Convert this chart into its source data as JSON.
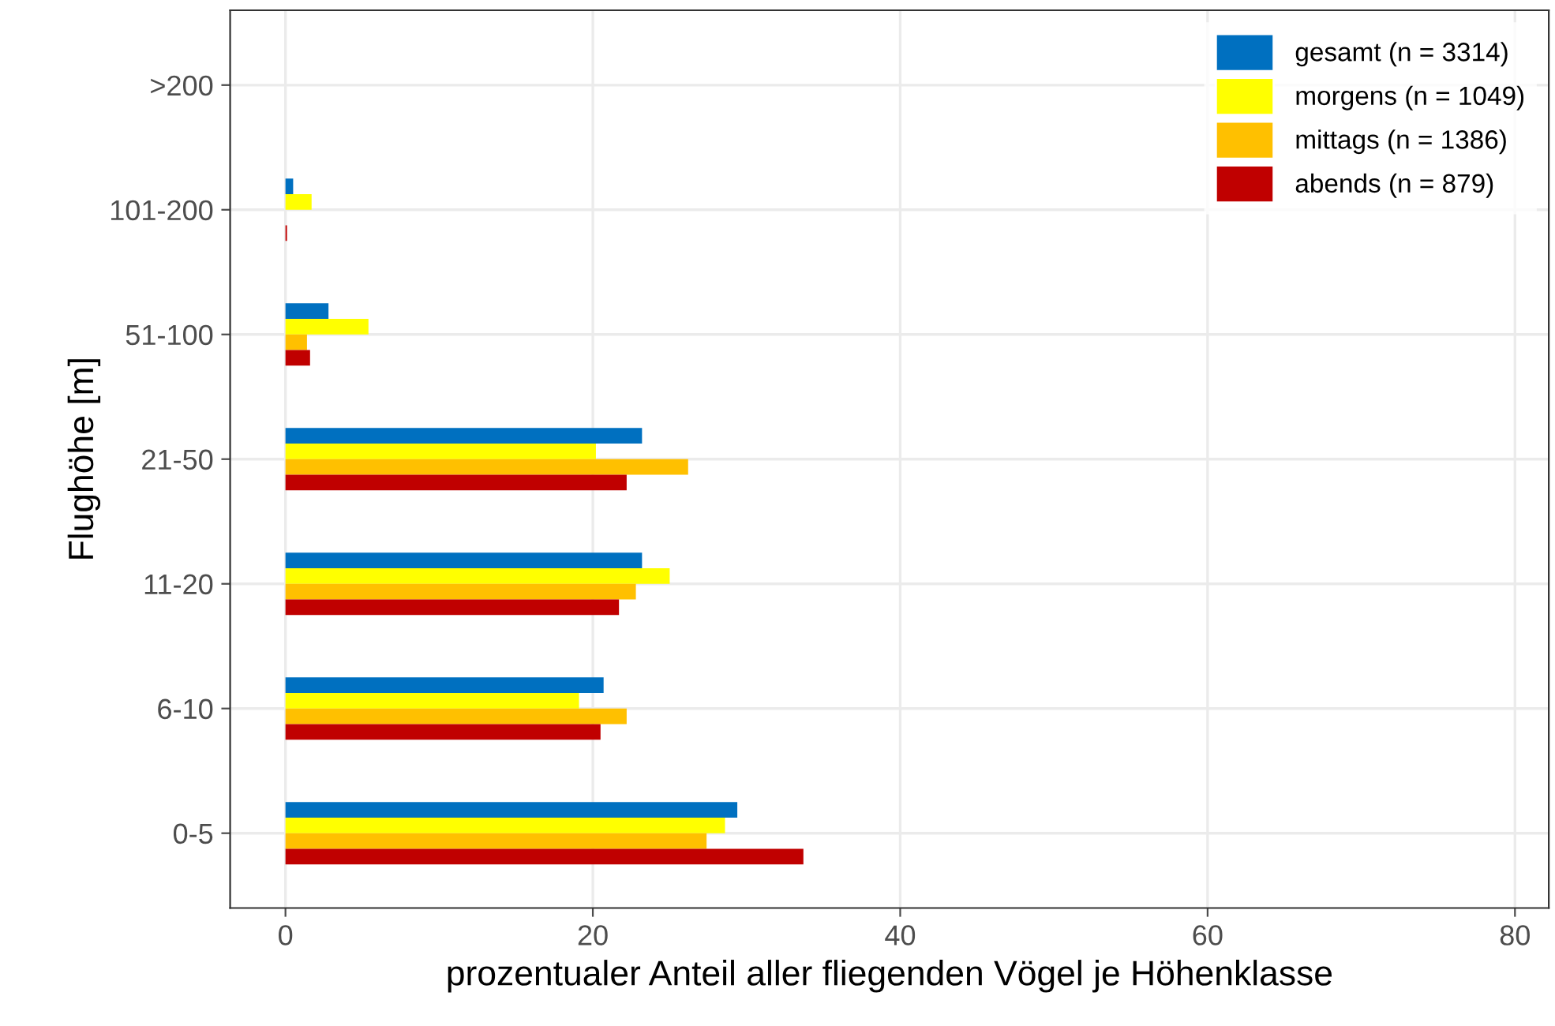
{
  "chart_data": {
    "type": "bar",
    "orientation": "horizontal",
    "categories": [
      ">200",
      "101-200",
      "51-100",
      "21-50",
      "11-20",
      "6-10",
      "0-5"
    ],
    "xlabel": "prozentualer Anteil aller fliegenden Vögel je Höhenklasse",
    "ylabel": "Flughöhe [m]",
    "xlim": [
      -3.6,
      82.2
    ],
    "xticks": [
      0,
      20,
      40,
      60,
      80
    ],
    "grid": true,
    "legend": "top right",
    "series": [
      {
        "name": "gesamt (n = 3314)",
        "color": "#0070c0",
        "values": [
          0,
          0.5,
          2.8,
          23.2,
          23.2,
          20.7,
          29.4
        ]
      },
      {
        "name": "morgens (n = 1049)",
        "color": "#ffff00",
        "values": [
          0,
          1.7,
          5.4,
          20.2,
          25.0,
          19.1,
          28.6
        ]
      },
      {
        "name": "mittags (n = 1386)",
        "color": "#ffc000",
        "values": [
          0,
          0,
          1.4,
          26.2,
          22.8,
          22.2,
          27.4
        ]
      },
      {
        "name": "abends (n = 879)",
        "color": "#c00000",
        "values": [
          0,
          0.1,
          1.6,
          22.2,
          21.7,
          20.5,
          33.7
        ]
      }
    ]
  }
}
